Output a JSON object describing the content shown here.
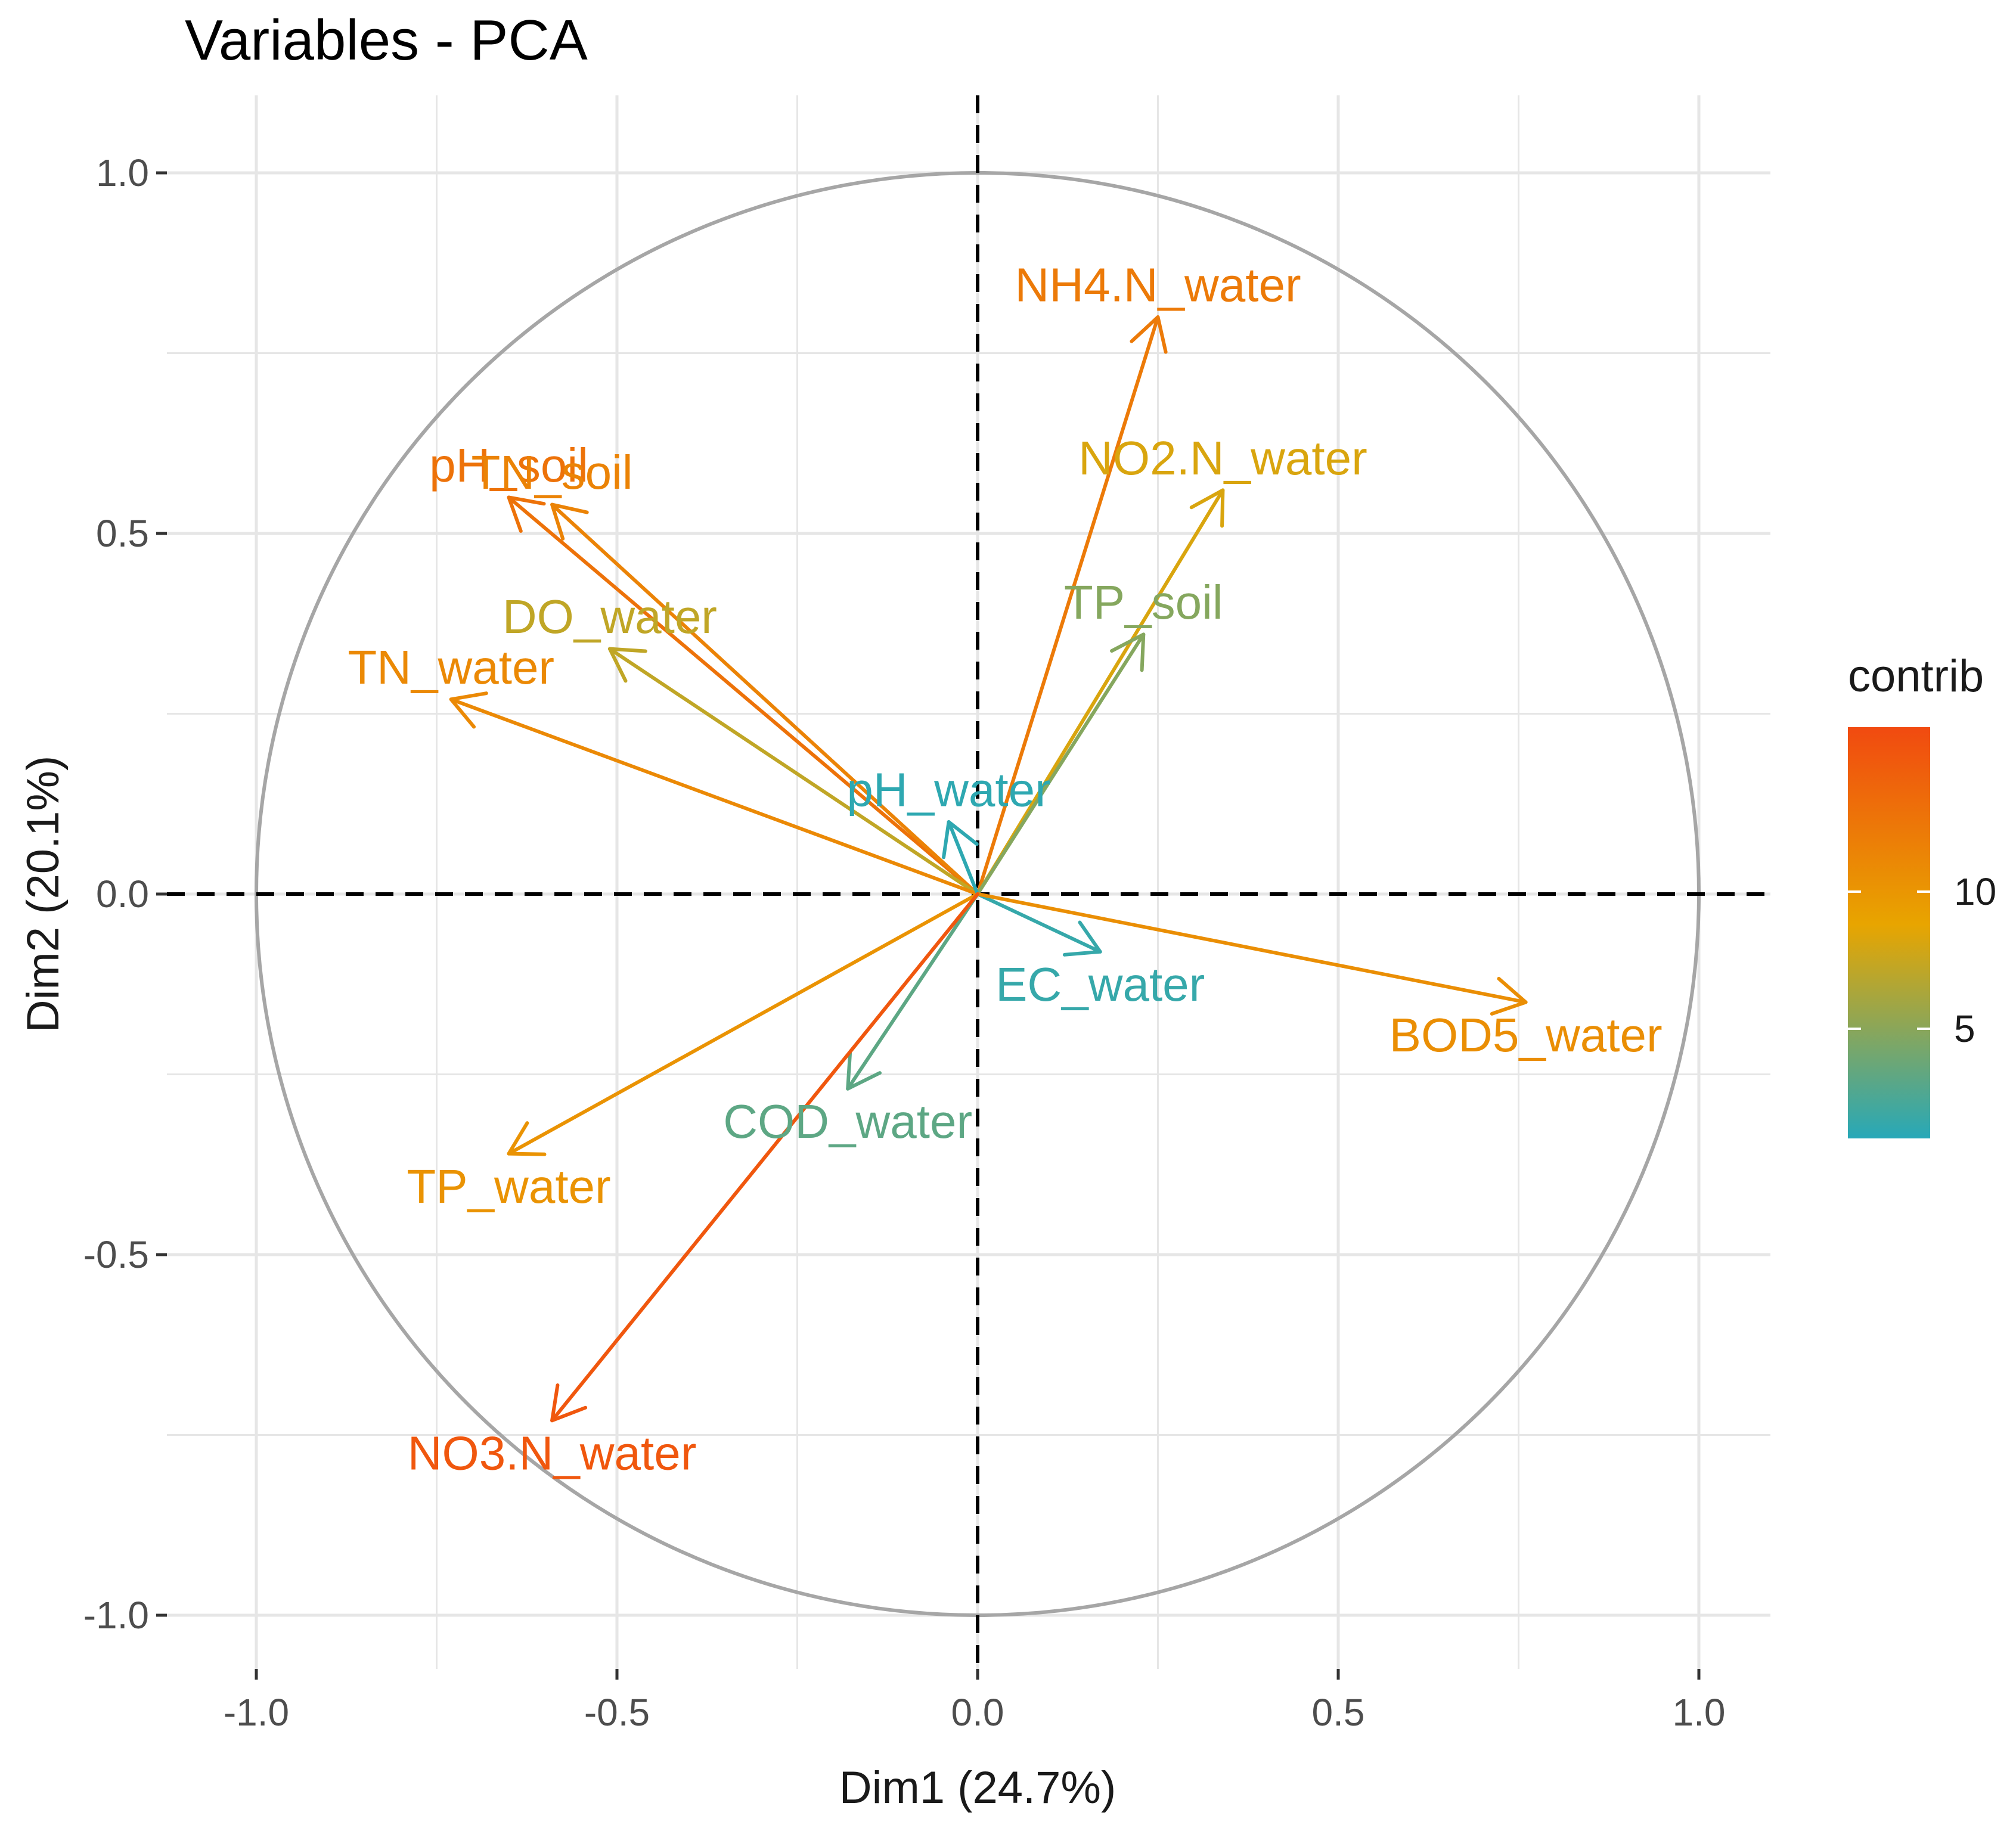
{
  "chart_data": {
    "type": "scatter",
    "subtype": "pca-variable-correlation-circle",
    "title": "Variables - PCA",
    "xlabel": "Dim1 (24.7%)",
    "ylabel": "Dim2 (20.1%)",
    "xlim": [
      -1.1,
      1.1
    ],
    "ylim": [
      -1.1,
      1.1
    ],
    "x_ticks": [
      {
        "value": -1.0,
        "label": "-1.0"
      },
      {
        "value": -0.5,
        "label": "-0.5"
      },
      {
        "value": 0.0,
        "label": "0.0"
      },
      {
        "value": 0.5,
        "label": "0.5"
      },
      {
        "value": 1.0,
        "label": "1.0"
      }
    ],
    "y_ticks": [
      {
        "value": 1.0,
        "label": "1.0"
      },
      {
        "value": 0.5,
        "label": "0.5"
      },
      {
        "value": 0.0,
        "label": "0.0"
      },
      {
        "value": -0.5,
        "label": "-0.5"
      },
      {
        "value": -1.0,
        "label": "-1.0"
      }
    ],
    "grid": true,
    "correlation_circle_radius": 1.0,
    "color_legend": {
      "title": "contrib",
      "placement": "right",
      "min": 1,
      "max": 16,
      "ticks": [
        {
          "value": 10,
          "label": "10"
        },
        {
          "value": 5,
          "label": "5"
        }
      ],
      "gradient": [
        "#27A8B8",
        "#E8A500",
        "#F14A10"
      ]
    },
    "variables": [
      {
        "name": "NH4.N_water",
        "x": 0.25,
        "y": 0.8,
        "contrib": 12.2
      },
      {
        "name": "pH_soil",
        "x": -0.65,
        "y": 0.55,
        "contrib": 12.8
      },
      {
        "name": "TN_soil",
        "x": -0.59,
        "y": 0.54,
        "contrib": 11.5
      },
      {
        "name": "NO2.N_water",
        "x": 0.34,
        "y": 0.56,
        "contrib": 8.2
      },
      {
        "name": "TP_soil",
        "x": 0.23,
        "y": 0.36,
        "contrib": 4.8
      },
      {
        "name": "DO_water",
        "x": -0.51,
        "y": 0.34,
        "contrib": 7.2
      },
      {
        "name": "TN_water",
        "x": -0.73,
        "y": 0.27,
        "contrib": 11.0
      },
      {
        "name": "pH_water",
        "x": -0.04,
        "y": 0.1,
        "contrib": 1.3
      },
      {
        "name": "EC_water",
        "x": 0.17,
        "y": -0.08,
        "contrib": 1.6
      },
      {
        "name": "BOD5_water",
        "x": 0.76,
        "y": -0.15,
        "contrib": 10.6
      },
      {
        "name": "COD_water",
        "x": -0.18,
        "y": -0.27,
        "contrib": 3.2
      },
      {
        "name": "TP_water",
        "x": -0.65,
        "y": -0.36,
        "contrib": 10.2
      },
      {
        "name": "NO3.N_water",
        "x": -0.59,
        "y": -0.73,
        "contrib": 15.0
      }
    ]
  }
}
